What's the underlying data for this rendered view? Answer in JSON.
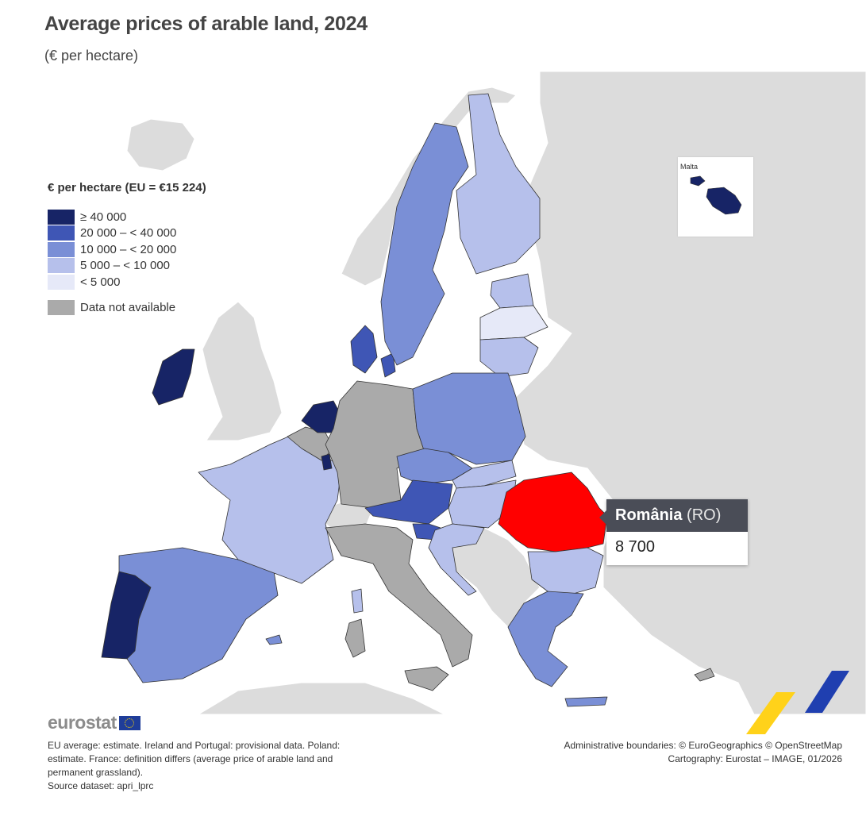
{
  "header": {
    "title": "Average prices of arable land, 2024",
    "subtitle": "(€ per hectare)"
  },
  "legend": {
    "title": "€ per hectare (EU = €15 224)",
    "classes": [
      {
        "label": "≥ 40 000",
        "color": "#172466"
      },
      {
        "label": "20 000 – < 40 000",
        "color": "#3f56b5"
      },
      {
        "label": "10 000 – < 20 000",
        "color": "#7a8fd6"
      },
      {
        "label": "5 000 – < 10 000",
        "color": "#b6c0eb"
      },
      {
        "label": "< 5 000",
        "color": "#e6e9f8"
      }
    ],
    "not_available": {
      "label": "Data not available",
      "color": "#aaaaaa"
    }
  },
  "inset": {
    "label": "Malta"
  },
  "tooltip": {
    "name": "România",
    "code": "(RO)",
    "value": "8 700",
    "highlight_color": "#ff0000"
  },
  "colors": {
    "background_land": "#dcdcdc",
    "sea": "#ffffff",
    "border": "#333333"
  },
  "footer": {
    "logo": "eurostat",
    "notes": [
      "EU average: estimate. Ireland and Portugal: provisional data. Poland:",
      "estimate. France: definition differs (average price of arable land and",
      "permanent grassland).",
      "Source dataset: apri_lprc"
    ],
    "credits": [
      "Administrative boundaries: © EuroGeographics © OpenStreetMap",
      "Cartography: Eurostat – IMAGE, 01/2026"
    ]
  }
}
